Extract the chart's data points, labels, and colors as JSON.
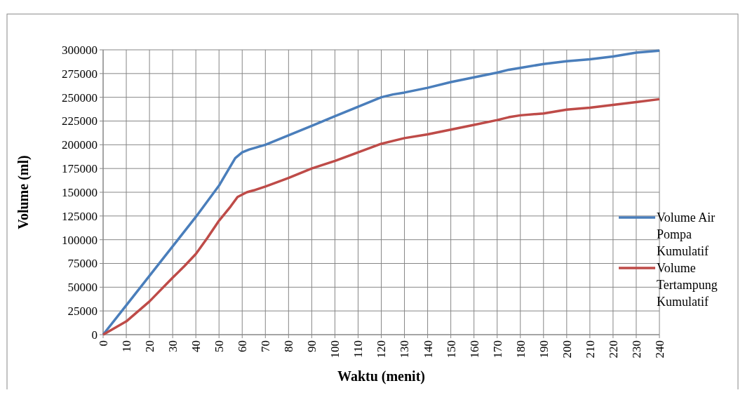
{
  "chart_data": {
    "type": "line",
    "xlabel": "Waktu (menit)",
    "ylabel": "Volume (ml)",
    "xlim": [
      0,
      240
    ],
    "xticks": [
      0,
      10,
      20,
      30,
      40,
      50,
      60,
      70,
      80,
      90,
      100,
      110,
      120,
      130,
      140,
      150,
      160,
      170,
      180,
      190,
      200,
      210,
      220,
      230,
      240
    ],
    "ylim": [
      0,
      300000
    ],
    "yticks": [
      0,
      25000,
      50000,
      75000,
      100000,
      125000,
      150000,
      175000,
      200000,
      225000,
      250000,
      275000,
      300000
    ],
    "grid": true,
    "legend": "right",
    "line_style": "solid",
    "series": [
      {
        "name": "Volume Air Pompa Kumulatif",
        "color": "#4a7ebb",
        "x": [
          0,
          10,
          20,
          30,
          40,
          50,
          57,
          60,
          63,
          70,
          80,
          90,
          100,
          110,
          120,
          125,
          130,
          140,
          150,
          160,
          170,
          175,
          180,
          190,
          200,
          210,
          220,
          230,
          240
        ],
        "values": [
          0,
          31000,
          62000,
          93000,
          124000,
          157000,
          186000,
          192000,
          195000,
          200000,
          210000,
          220000,
          230000,
          240000,
          250000,
          253000,
          255000,
          260000,
          266000,
          271000,
          276000,
          279000,
          281000,
          285000,
          288000,
          290000,
          293000,
          297000,
          299000
        ]
      },
      {
        "name": "Volume Tertampung Kumulatif",
        "color": "#be4b48",
        "x": [
          0,
          10,
          20,
          30,
          35,
          40,
          45,
          50,
          55,
          58,
          62,
          65,
          70,
          80,
          90,
          100,
          110,
          120,
          125,
          130,
          140,
          150,
          160,
          170,
          175,
          180,
          190,
          200,
          210,
          220,
          230,
          240
        ],
        "values": [
          0,
          14000,
          35000,
          60000,
          72000,
          85000,
          102000,
          120000,
          135000,
          145000,
          150000,
          152000,
          156000,
          165000,
          175000,
          183000,
          192000,
          201000,
          204000,
          207000,
          211000,
          216000,
          221000,
          226000,
          229000,
          231000,
          233000,
          237000,
          239000,
          242000,
          245000,
          248000
        ]
      }
    ]
  }
}
